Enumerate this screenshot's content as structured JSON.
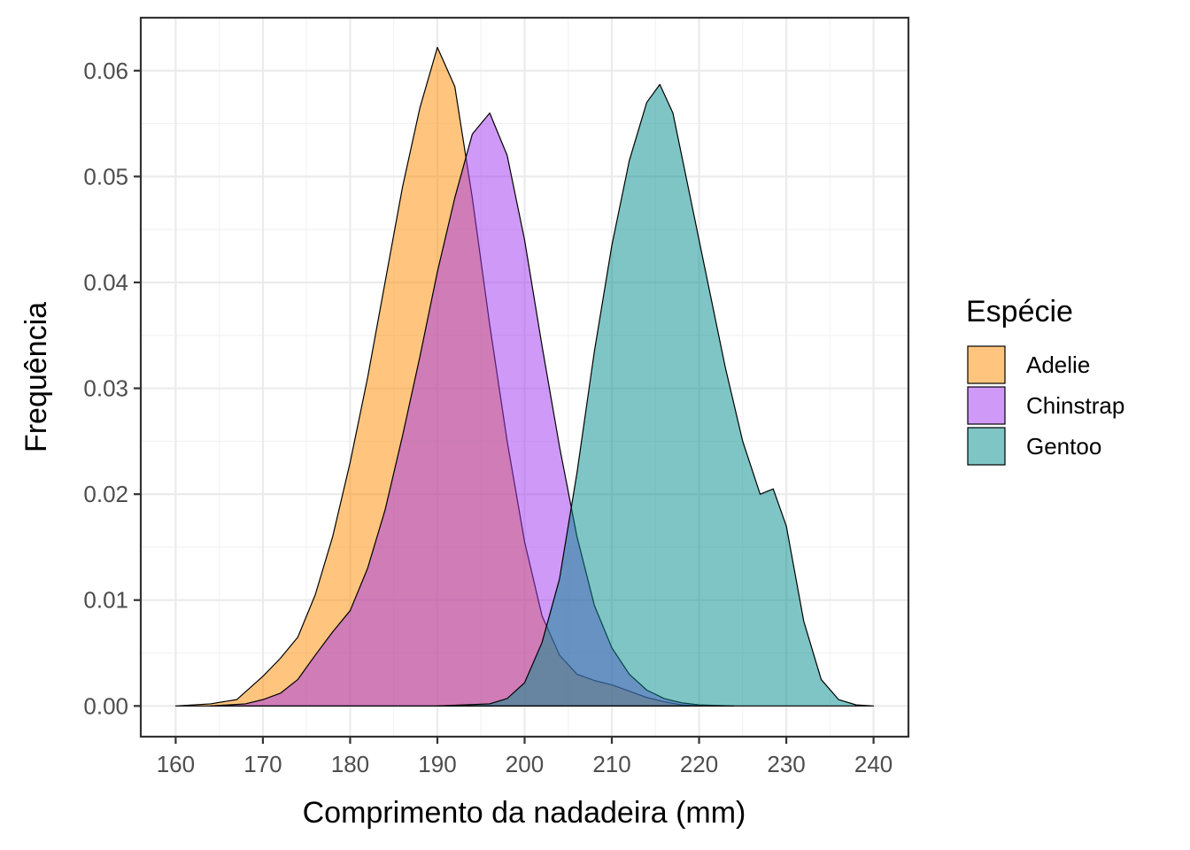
{
  "chart_data": {
    "type": "area",
    "subtype": "density",
    "xlabel": "Comprimento da nadadeira (mm)",
    "ylabel": "Frequência",
    "xlim": [
      156,
      244
    ],
    "ylim": [
      -0.0029,
      0.065
    ],
    "x_ticks": [
      160,
      170,
      180,
      190,
      200,
      210,
      220,
      230,
      240
    ],
    "x_tick_labels": [
      "160",
      "170",
      "180",
      "190",
      "200",
      "210",
      "220",
      "230",
      "240"
    ],
    "y_ticks": [
      0,
      0.01,
      0.02,
      0.03,
      0.04,
      0.05,
      0.06
    ],
    "y_tick_labels": [
      "0.00",
      "0.01",
      "0.02",
      "0.03",
      "0.04",
      "0.05",
      "0.06"
    ],
    "grid": true,
    "legend": {
      "title": "Espécie",
      "position": "right",
      "entries": [
        "Adelie",
        "Chinstrap",
        "Gentoo"
      ]
    },
    "series": [
      {
        "name": "Adelie",
        "color": "#FF8C00",
        "opacity": 0.5,
        "x": [
          160,
          164,
          167,
          170,
          172,
          174,
          176,
          178,
          180,
          182,
          184,
          186,
          188,
          190,
          192,
          194,
          196,
          198,
          200,
          202,
          204,
          206,
          208,
          210,
          212,
          214,
          216,
          218,
          220
        ],
        "y": [
          0.0,
          0.0002,
          0.0006,
          0.0028,
          0.0045,
          0.0065,
          0.0105,
          0.016,
          0.023,
          0.031,
          0.04,
          0.049,
          0.0565,
          0.0622,
          0.0585,
          0.048,
          0.036,
          0.025,
          0.0155,
          0.0085,
          0.0048,
          0.003,
          0.0024,
          0.002,
          0.0014,
          0.0008,
          0.0004,
          0.0001,
          0.0
        ]
      },
      {
        "name": "Chinstrap",
        "color": "#A034F0",
        "opacity": 0.5,
        "x": [
          164,
          168,
          170,
          172,
          174,
          176,
          178,
          180,
          182,
          184,
          186,
          188,
          190,
          192,
          194,
          196,
          198,
          200,
          202,
          204,
          206,
          208,
          210,
          212,
          214,
          216,
          218,
          220,
          224
        ],
        "y": [
          0.0,
          0.0002,
          0.0006,
          0.0012,
          0.0025,
          0.0048,
          0.007,
          0.009,
          0.013,
          0.0185,
          0.0255,
          0.033,
          0.041,
          0.048,
          0.054,
          0.056,
          0.052,
          0.044,
          0.034,
          0.0245,
          0.016,
          0.0095,
          0.0055,
          0.003,
          0.0015,
          0.0007,
          0.0003,
          0.0001,
          0.0
        ]
      },
      {
        "name": "Gentoo",
        "color": "#008B8B",
        "opacity": 0.5,
        "x": [
          190,
          196,
          198,
          200,
          202,
          204,
          206,
          208,
          210,
          212,
          214,
          215.5,
          217,
          219,
          221,
          223,
          225,
          227,
          228.5,
          230,
          232,
          234,
          236,
          238,
          240
        ],
        "y": [
          0.0,
          0.0002,
          0.0007,
          0.0022,
          0.006,
          0.012,
          0.022,
          0.0335,
          0.0435,
          0.0515,
          0.057,
          0.0587,
          0.056,
          0.048,
          0.04,
          0.032,
          0.025,
          0.02,
          0.0205,
          0.017,
          0.008,
          0.0025,
          0.0006,
          0.0001,
          0.0
        ]
      }
    ]
  }
}
